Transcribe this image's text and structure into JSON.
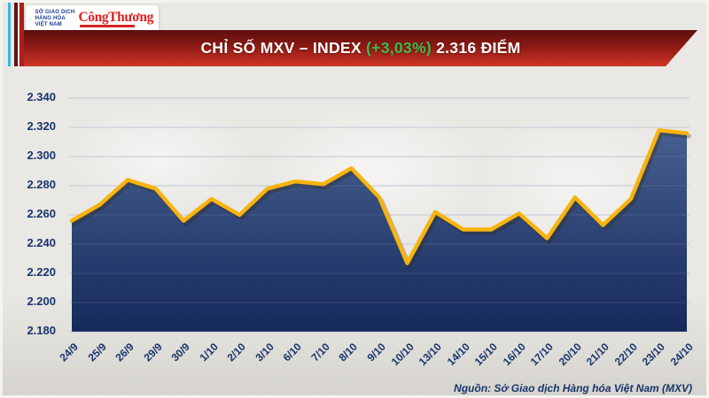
{
  "header": {
    "logo": {
      "org_lines": [
        "SỞ GIAO DỊCH",
        "HÀNG HÓA",
        "VIỆT NAM"
      ],
      "brand": "CôngThương"
    },
    "banner": {
      "title_prefix": "CHỈ SỐ MXV – INDEX ",
      "title_change": "(+3,03%)",
      "title_suffix": " 2.316 ĐIỂM"
    }
  },
  "chart_data": {
    "type": "area",
    "title": "CHỈ SỐ MXV – INDEX (+3,03%) 2.316 ĐIỂM",
    "x": [
      "24/9",
      "25/9",
      "26/9",
      "29/9",
      "30/9",
      "1/10",
      "2/10",
      "3/10",
      "6/10",
      "7/10",
      "8/10",
      "9/10",
      "10/10",
      "13/10",
      "14/10",
      "15/10",
      "16/10",
      "17/10",
      "20/10",
      "21/10",
      "22/10",
      "23/10",
      "24/10"
    ],
    "values": [
      2.256,
      2.267,
      2.284,
      2.278,
      2.256,
      2.271,
      2.26,
      2.278,
      2.283,
      2.281,
      2.292,
      2.272,
      2.227,
      2.262,
      2.25,
      2.25,
      2.261,
      2.244,
      2.272,
      2.253,
      2.271,
      2.318,
      2.316
    ],
    "y_ticks": [
      "2.340",
      "2.320",
      "2.300",
      "2.280",
      "2.260",
      "2.240",
      "2.220",
      "2.200",
      "2.180"
    ],
    "ylim": [
      2.18,
      2.34
    ],
    "grid": true,
    "unit_last_value": "2.316",
    "change_percent": "+3,03%",
    "line_color": "#f8b30d",
    "fill_top": "#46608f",
    "fill_bottom": "#16295b",
    "grid_color": "#c7ccd6",
    "axis_text_color": "#17356b"
  },
  "footer": {
    "source": "Nguồn: Sở Giao dịch Hàng hóa Việt Nam (MXV)"
  },
  "colors": {
    "background": "#e9e8e4",
    "banner_top": "#5c0e0f",
    "banner_bottom": "#cf3526",
    "banner_green": "#3fba4c",
    "stripe_cyan": "#35b7e8",
    "stripe_maroon": "#641315",
    "stripe_red": "#a82019",
    "brand_red": "#dd1f1f"
  }
}
